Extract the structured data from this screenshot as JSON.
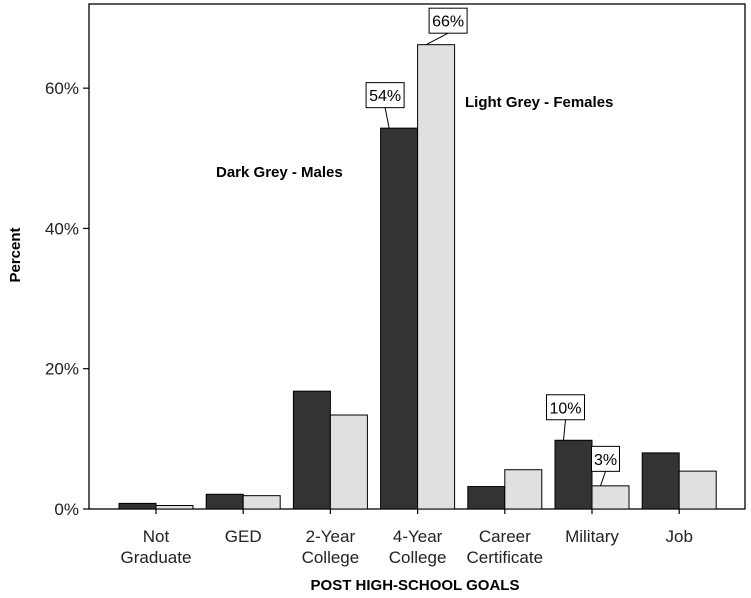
{
  "chart_data": {
    "type": "bar",
    "xlabel": "POST HIGH-SCHOOL GOALS",
    "ylabel": "Percent",
    "ylim": [
      0,
      72
    ],
    "yticks": [
      0,
      20,
      40,
      60
    ],
    "ytick_labels": [
      "0%",
      "20%",
      "40%",
      "60%"
    ],
    "grid": false,
    "categories": [
      [
        "Not",
        "Graduate"
      ],
      [
        "GED"
      ],
      [
        "2-Year",
        "College"
      ],
      [
        "4-Year",
        "College"
      ],
      [
        "Career",
        "Certificate"
      ],
      [
        "Military"
      ],
      [
        "Job"
      ]
    ],
    "series": [
      {
        "values": [
          0.8,
          2.1,
          16.8,
          54.3,
          3.2,
          9.8,
          8.0
        ],
        "color": "#333333"
      },
      {
        "values": [
          0.5,
          1.9,
          13.4,
          66.2,
          5.6,
          3.3,
          5.4
        ],
        "color": "#e0e0e0"
      }
    ],
    "annotations": [
      {
        "series": 0,
        "category": 3,
        "text": "54%"
      },
      {
        "series": 1,
        "category": 3,
        "text": "66%"
      },
      {
        "series": 0,
        "category": 5,
        "text": "10%"
      },
      {
        "series": 1,
        "category": 5,
        "text": "3%"
      }
    ],
    "legend_notes": [
      {
        "text": "Dark Grey - Males"
      },
      {
        "text": "Light Grey - Females"
      }
    ]
  }
}
